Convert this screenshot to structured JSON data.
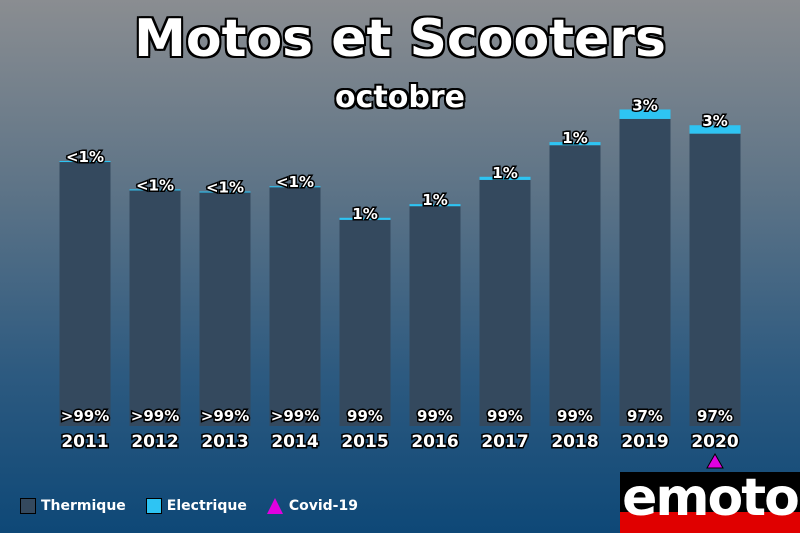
{
  "title": "Motos et Scooters",
  "subtitle": "octobre",
  "chart_data": {
    "type": "bar",
    "stacked": true,
    "categories": [
      "2011",
      "2012",
      "2013",
      "2014",
      "2015",
      "2016",
      "2017",
      "2018",
      "2019",
      "2020"
    ],
    "series": [
      {
        "name": "Thermique",
        "color": "#34495e",
        "values": [
          251,
          224,
          222,
          227,
          196,
          209,
          234,
          267,
          292,
          278
        ],
        "labels": [
          ">99%",
          ">99%",
          ">99%",
          ">99%",
          "99%",
          "99%",
          "99%",
          "99%",
          "97%",
          "97%"
        ]
      },
      {
        "name": "Electrique",
        "color": "#2ec4f3",
        "values": [
          1,
          1,
          1,
          1,
          2,
          2,
          3,
          3,
          9,
          8
        ],
        "labels": [
          "<1%",
          "<1%",
          "<1%",
          "<1%",
          "1%",
          "1%",
          "1%",
          "1%",
          "3%",
          "3%"
        ]
      }
    ],
    "annotations": [
      {
        "category": "2020",
        "name": "Covid-19",
        "marker": "triangle",
        "color": "#e000e0"
      }
    ],
    "ylim": [
      0,
      310
    ],
    "legend": "bottom-left",
    "grid": false
  },
  "legend": {
    "items": [
      {
        "label": "Thermique",
        "color": "#34495e"
      },
      {
        "label": "Electrique",
        "color": "#2ec4f3"
      },
      {
        "label": "Covid-19",
        "color": "#e000e0"
      }
    ]
  },
  "logo": {
    "text": "emoto"
  }
}
